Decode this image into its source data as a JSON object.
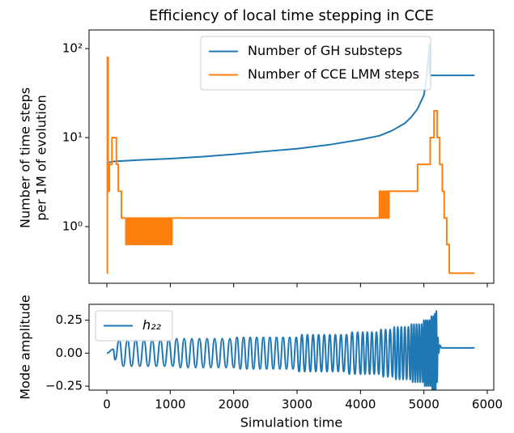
{
  "chart_data": [
    {
      "type": "line",
      "title": "Efficiency of local time stepping in CCE",
      "ylabel": [
        "Number of time steps",
        "per 1M of evolution"
      ],
      "yscale": "log",
      "xlim": [
        -281,
        6102
      ],
      "ylim": [
        0.231,
        162
      ],
      "xticks": [
        0,
        1000,
        2000,
        3000,
        4000,
        5000,
        6000
      ],
      "yticks": [
        {
          "value": 1,
          "label": "10⁰"
        },
        {
          "value": 10,
          "label": "10¹"
        },
        {
          "value": 100,
          "label": "10²"
        }
      ],
      "legend": "upper center",
      "series": [
        {
          "name": "Number of GH substeps",
          "color": "#1f77b4",
          "drawstyle": "default",
          "x": [
            0,
            100,
            500,
            1000,
            1500,
            2000,
            2500,
            3000,
            3500,
            4000,
            4300,
            4500,
            4700,
            4800,
            4900,
            5000,
            5040,
            5070,
            5085,
            5092,
            5100,
            5800
          ],
          "values": [
            5.2,
            5.4,
            5.6,
            5.8,
            6.1,
            6.5,
            7,
            7.5,
            8.3,
            9.5,
            10.5,
            12,
            14.5,
            17,
            21,
            30,
            45,
            80,
            110,
            50,
            50,
            50
          ]
        },
        {
          "name": "Number of CCE LMM steps",
          "color": "#ff7f0e",
          "drawstyle": "steps-post",
          "x": [
            0,
            8,
            20,
            40,
            80,
            150,
            180,
            230,
            300,
            325,
            350,
            375,
            400,
            425,
            450,
            475,
            500,
            525,
            550,
            575,
            600,
            625,
            650,
            675,
            700,
            725,
            750,
            775,
            800,
            825,
            850,
            875,
            900,
            925,
            950,
            975,
            1000,
            1025,
            4300,
            4325,
            4350,
            4375,
            4400,
            4425,
            4450,
            4900,
            5100,
            5160,
            5210,
            5250,
            5290,
            5320,
            5360,
            5400,
            5800
          ],
          "values": [
            0.3,
            80,
            2.5,
            5,
            10,
            5,
            2.5,
            1.25,
            0.63,
            1.25,
            0.63,
            1.25,
            0.63,
            1.25,
            0.63,
            1.25,
            0.63,
            1.25,
            0.63,
            1.25,
            0.63,
            1.25,
            0.63,
            1.25,
            0.63,
            1.25,
            0.63,
            1.25,
            0.63,
            1.25,
            0.63,
            1.25,
            0.63,
            1.25,
            0.63,
            1.25,
            0.63,
            1.25,
            2.5,
            1.25,
            2.5,
            1.25,
            2.5,
            1.25,
            2.5,
            5,
            10,
            20,
            10,
            5,
            2.5,
            1.25,
            0.63,
            0.3,
            0.3
          ]
        }
      ]
    },
    {
      "type": "line",
      "xlabel": "Simulation time",
      "ylabel": "Mode amplitude",
      "yscale": "linear",
      "xlim": [
        -281,
        6102
      ],
      "ylim": [
        -0.28,
        0.37
      ],
      "xticks": [
        0,
        1000,
        2000,
        3000,
        4000,
        5000,
        6000
      ],
      "yticks": [
        {
          "value": -0.25,
          "label": "−0.25"
        },
        {
          "value": 0,
          "label": "0.00"
        },
        0.25
      ],
      "legend": "upper left",
      "series": [
        {
          "name": "h₂₂",
          "color": "#1f77b4",
          "drawstyle": "smooth",
          "x": [
            0,
            100,
            130,
            195,
            260,
            325,
            390,
            455,
            520,
            585,
            650,
            715,
            780,
            845,
            910,
            975,
            1040,
            1100,
            1160,
            1220,
            1280,
            1340,
            1400,
            1460,
            1520,
            1580,
            1640,
            1700,
            1760,
            1820,
            1880,
            1940,
            2000,
            2052,
            2104,
            2156,
            2208,
            2260,
            2312,
            2364,
            2416,
            2468,
            2520,
            2572,
            2624,
            2676,
            2728,
            2780,
            2832,
            2884,
            2936,
            2988,
            3032,
            3076,
            3120,
            3164,
            3208,
            3252,
            3296,
            3340,
            3384,
            3428,
            3472,
            3516,
            3560,
            3604,
            3648,
            3692,
            3736,
            3780,
            3824,
            3868,
            3912,
            3956,
            4000,
            4036,
            4072,
            4108,
            4144,
            4180,
            4216,
            4252,
            4288,
            4324,
            4360,
            4396,
            4432,
            4468,
            4504,
            4532,
            4560,
            4588,
            4616,
            4644,
            4672,
            4700,
            4728,
            4756,
            4784,
            4804,
            4824,
            4844,
            4864,
            4884,
            4904,
            4924,
            4944,
            4964,
            4984,
            4999,
            5014,
            5029,
            5044,
            5059,
            5074,
            5089,
            5104,
            5119,
            5134,
            5149,
            5161,
            5173,
            5185,
            5197,
            5209,
            5221,
            5233,
            5250,
            5280,
            5800
          ],
          "values": [
            0,
            0.03,
            -0.05,
            0.1,
            -0.1,
            0.1,
            -0.1,
            0.1,
            -0.1,
            0.1,
            -0.1,
            0.1,
            -0.1,
            0.1,
            -0.1,
            0.1,
            -0.1,
            0.11,
            -0.11,
            0.11,
            -0.11,
            0.11,
            -0.11,
            0.11,
            -0.11,
            0.11,
            -0.11,
            0.11,
            -0.11,
            0.11,
            -0.11,
            0.11,
            -0.11,
            0.12,
            -0.12,
            0.12,
            -0.12,
            0.12,
            -0.12,
            0.12,
            -0.12,
            0.12,
            -0.12,
            0.12,
            -0.12,
            0.12,
            -0.12,
            0.12,
            -0.12,
            0.12,
            -0.12,
            0.12,
            -0.14,
            0.14,
            -0.14,
            0.14,
            -0.14,
            0.14,
            -0.14,
            0.14,
            -0.14,
            0.14,
            -0.14,
            0.14,
            -0.14,
            0.14,
            -0.14,
            0.14,
            -0.14,
            0.14,
            -0.16,
            0.16,
            -0.16,
            0.16,
            -0.16,
            0.16,
            -0.16,
            0.16,
            -0.16,
            0.16,
            -0.16,
            0.16,
            -0.16,
            0.18,
            -0.18,
            0.18,
            -0.18,
            0.18,
            -0.18,
            0.2,
            -0.2,
            0.2,
            -0.2,
            0.2,
            -0.2,
            0.2,
            -0.2,
            0.2,
            -0.2,
            0.22,
            -0.22,
            0.22,
            -0.22,
            0.22,
            -0.22,
            0.22,
            -0.22,
            0.22,
            -0.22,
            0.25,
            -0.25,
            0.25,
            -0.25,
            0.25,
            -0.25,
            0.25,
            -0.25,
            0.28,
            -0.28,
            0.28,
            -0.3,
            0.3,
            -0.3,
            0.32,
            -0.22,
            0.12,
            0,
            0.06,
            0.04,
            0.04
          ]
        }
      ]
    }
  ]
}
